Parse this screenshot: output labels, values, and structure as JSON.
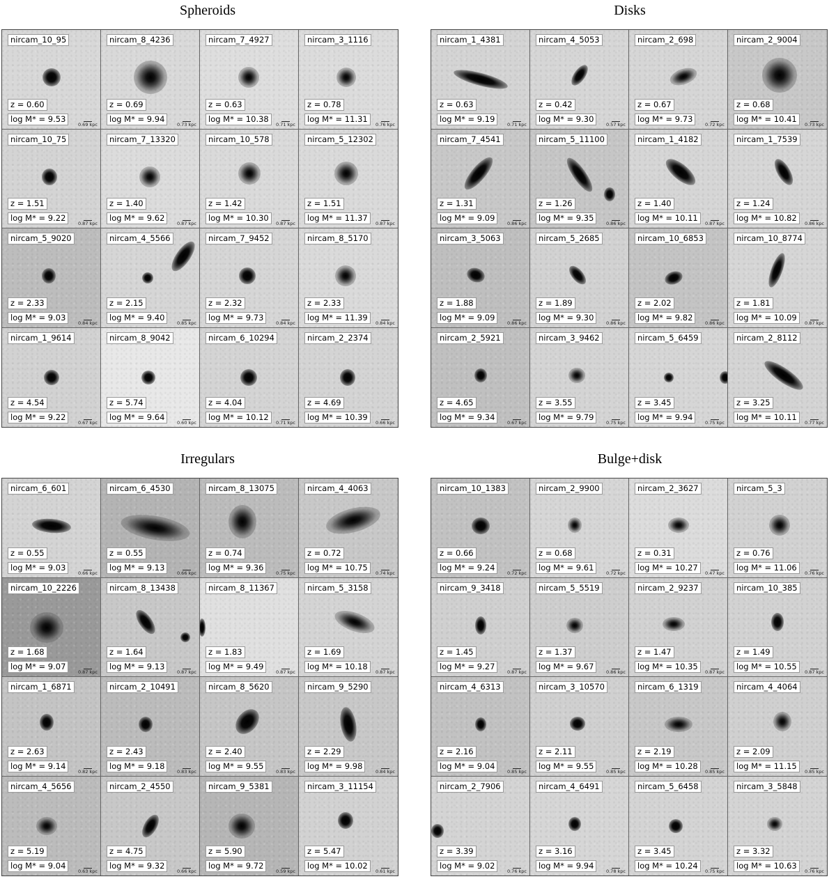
{
  "panels": [
    {
      "title": "Spheroids",
      "cells": [
        {
          "name": "nircam_10_95",
          "z": "z = 0.60",
          "m": "log M* = 9.53",
          "scale": "0.69 kpc"
        },
        {
          "name": "nircam_8_4236",
          "z": "z = 0.69",
          "m": "log M* = 9.94",
          "scale": "0.73 kpc"
        },
        {
          "name": "nircam_7_4927",
          "z": "z = 0.63",
          "m": "log M* = 10.38",
          "scale": "0.71 kpc"
        },
        {
          "name": "nircam_3_1116",
          "z": "z = 0.78",
          "m": "log M* = 11.31",
          "scale": "0.76 kpc"
        },
        {
          "name": "nircam_10_75",
          "z": "z = 1.51",
          "m": "log M* = 9.22",
          "scale": "0.87 kpc"
        },
        {
          "name": "nircam_7_13320",
          "z": "z = 1.40",
          "m": "log M* = 9.62",
          "scale": "0.87 kpc"
        },
        {
          "name": "nircam_10_578",
          "z": "z = 1.42",
          "m": "log M* = 10.30",
          "scale": "0.87 kpc"
        },
        {
          "name": "nircam_5_12302",
          "z": "z = 1.51",
          "m": "log M* = 11.37",
          "scale": "0.87 kpc"
        },
        {
          "name": "nircam_5_9020",
          "z": "z = 2.33",
          "m": "log M* = 9.03",
          "scale": "0.84 kpc"
        },
        {
          "name": "nircam_4_5566",
          "z": "z = 2.15",
          "m": "log M* = 9.40",
          "scale": "0.85 kpc"
        },
        {
          "name": "nircam_7_9452",
          "z": "z = 2.32",
          "m": "log M* = 9.73",
          "scale": "0.84 kpc"
        },
        {
          "name": "nircam_8_5170",
          "z": "z = 2.33",
          "m": "log M* = 11.39",
          "scale": "0.84 kpc"
        },
        {
          "name": "nircam_1_9614",
          "z": "z = 4.54",
          "m": "log M* = 9.22",
          "scale": "0.67 kpc"
        },
        {
          "name": "nircam_8_9042",
          "z": "z = 5.74",
          "m": "log M* = 9.64",
          "scale": "0.60 kpc"
        },
        {
          "name": "nircam_6_10294",
          "z": "z = 4.04",
          "m": "log M* = 10.12",
          "scale": "0.71 kpc"
        },
        {
          "name": "nircam_2_2374",
          "z": "z = 4.69",
          "m": "log M* = 10.39",
          "scale": "0.66 kpc"
        }
      ]
    },
    {
      "title": "Disks",
      "cells": [
        {
          "name": "nircam_1_4381",
          "z": "z = 0.63",
          "m": "log M* = 9.19",
          "scale": "0.71 kpc"
        },
        {
          "name": "nircam_4_5053",
          "z": "z = 0.42",
          "m": "log M* = 9.30",
          "scale": "0.57 kpc"
        },
        {
          "name": "nircam_2_698",
          "z": "z = 0.67",
          "m": "log M* = 9.73",
          "scale": "0.72 kpc"
        },
        {
          "name": "nircam_2_9004",
          "z": "z = 0.68",
          "m": "log M* = 10.41",
          "scale": "0.73 kpc"
        },
        {
          "name": "nircam_7_4541",
          "z": "z = 1.31",
          "m": "log M* = 9.09",
          "scale": "0.86 kpc"
        },
        {
          "name": "nircam_5_11100",
          "z": "z = 1.26",
          "m": "log M* = 9.35",
          "scale": "0.86 kpc"
        },
        {
          "name": "nircam_1_4182",
          "z": "z = 1.40",
          "m": "log M* = 10.11",
          "scale": "0.87 kpc"
        },
        {
          "name": "nircam_1_7539",
          "z": "z = 1.24",
          "m": "log M* = 10.82",
          "scale": "0.86 kpc"
        },
        {
          "name": "nircam_3_5063",
          "z": "z = 1.88",
          "m": "log M* = 9.09",
          "scale": "0.86 kpc"
        },
        {
          "name": "nircam_5_2685",
          "z": "z = 1.89",
          "m": "log M* = 9.30",
          "scale": "0.86 kpc"
        },
        {
          "name": "nircam_10_6853",
          "z": "z = 2.02",
          "m": "log M* = 9.82",
          "scale": "0.86 kpc"
        },
        {
          "name": "nircam_10_8774",
          "z": "z = 1.81",
          "m": "log M* = 10.09",
          "scale": "0.87 kpc"
        },
        {
          "name": "nircam_2_5921",
          "z": "z = 4.65",
          "m": "log M* = 9.34",
          "scale": "0.67 kpc"
        },
        {
          "name": "nircam_3_9462",
          "z": "z = 3.55",
          "m": "log M* = 9.79",
          "scale": "0.75 kpc"
        },
        {
          "name": "nircam_5_6459",
          "z": "z = 3.45",
          "m": "log M* = 9.94",
          "scale": "0.75 kpc"
        },
        {
          "name": "nircam_2_8112",
          "z": "z = 3.25",
          "m": "log M* = 10.11",
          "scale": "0.77 kpc"
        }
      ]
    },
    {
      "title": "Irregulars",
      "cells": [
        {
          "name": "nircam_6_601",
          "z": "z = 0.55",
          "m": "log M* = 9.03",
          "scale": "0.66 kpc"
        },
        {
          "name": "nircam_6_4530",
          "z": "z = 0.55",
          "m": "log M* = 9.13",
          "scale": "0.66 kpc"
        },
        {
          "name": "nircam_8_13075",
          "z": "z = 0.74",
          "m": "log M* = 9.36",
          "scale": "0.75 kpc"
        },
        {
          "name": "nircam_4_4063",
          "z": "z = 0.72",
          "m": "log M* = 10.75",
          "scale": "0.74 kpc"
        },
        {
          "name": "nircam_10_2226",
          "z": "z = 1.68",
          "m": "log M* = 9.07",
          "scale": "0.87 kpc"
        },
        {
          "name": "nircam_8_13438",
          "z": "z = 1.64",
          "m": "log M* = 9.13",
          "scale": "0.87 kpc"
        },
        {
          "name": "nircam_8_11367",
          "z": "z = 1.83",
          "m": "log M* = 9.49",
          "scale": "0.87 kpc"
        },
        {
          "name": "nircam_5_3158",
          "z": "z = 1.69",
          "m": "log M* = 10.18",
          "scale": "0.87 kpc"
        },
        {
          "name": "nircam_1_6871",
          "z": "z = 2.63",
          "m": "log M* = 9.14",
          "scale": "0.82 kpc"
        },
        {
          "name": "nircam_2_10491",
          "z": "z = 2.43",
          "m": "log M* = 9.18",
          "scale": "0.83 kpc"
        },
        {
          "name": "nircam_8_5620",
          "z": "z = 2.40",
          "m": "log M* = 9.55",
          "scale": "0.83 kpc"
        },
        {
          "name": "nircam_9_5290",
          "z": "z = 2.29",
          "m": "log M* = 9.98",
          "scale": "0.84 kpc"
        },
        {
          "name": "nircam_4_5656",
          "z": "z = 5.19",
          "m": "log M* = 9.04",
          "scale": "0.63 kpc"
        },
        {
          "name": "nircam_2_4550",
          "z": "z = 4.75",
          "m": "log M* = 9.32",
          "scale": "0.66 kpc"
        },
        {
          "name": "nircam_9_5381",
          "z": "z = 5.90",
          "m": "log M* = 9.72",
          "scale": "0.59 kpc"
        },
        {
          "name": "nircam_3_11154",
          "z": "z = 5.47",
          "m": "log M* = 10.02",
          "scale": "0.61 kpc"
        }
      ]
    },
    {
      "title": "Bulge+disk",
      "cells": [
        {
          "name": "nircam_10_1383",
          "z": "z = 0.66",
          "m": "log M* = 9.24",
          "scale": "0.72 kpc"
        },
        {
          "name": "nircam_2_9900",
          "z": "z = 0.68",
          "m": "log M* = 9.61",
          "scale": "0.72 kpc"
        },
        {
          "name": "nircam_2_3627",
          "z": "z = 0.31",
          "m": "log M* = 10.27",
          "scale": "0.47 kpc"
        },
        {
          "name": "nircam_5_3",
          "z": "z = 0.76",
          "m": "log M* = 11.06",
          "scale": "0.76 kpc"
        },
        {
          "name": "nircam_9_3418",
          "z": "z = 1.45",
          "m": "log M* = 9.27",
          "scale": "0.87 kpc"
        },
        {
          "name": "nircam_5_5519",
          "z": "z = 1.37",
          "m": "log M* = 9.67",
          "scale": "0.86 kpc"
        },
        {
          "name": "nircam_2_9237",
          "z": "z = 1.47",
          "m": "log M* = 10.35",
          "scale": "0.87 kpc"
        },
        {
          "name": "nircam_10_385",
          "z": "z = 1.49",
          "m": "log M* = 10.55",
          "scale": "0.87 kpc"
        },
        {
          "name": "nircam_4_6313",
          "z": "z = 2.16",
          "m": "log M* = 9.04",
          "scale": "0.85 kpc"
        },
        {
          "name": "nircam_3_10570",
          "z": "z = 2.11",
          "m": "log M* = 9.55",
          "scale": "0.85 kpc"
        },
        {
          "name": "nircam_6_1319",
          "z": "z = 2.19",
          "m": "log M* = 10.28",
          "scale": "0.85 kpc"
        },
        {
          "name": "nircam_4_4064",
          "z": "z = 2.09",
          "m": "log M* = 11.15",
          "scale": "0.85 kpc"
        },
        {
          "name": "nircam_2_7906",
          "z": "z = 3.39",
          "m": "log M* = 9.02",
          "scale": "0.76 kpc"
        },
        {
          "name": "nircam_4_6491",
          "z": "z = 3.16",
          "m": "log M* = 9.94",
          "scale": "0.78 kpc"
        },
        {
          "name": "nircam_5_6458",
          "z": "z = 3.45",
          "m": "log M* = 10.24",
          "scale": "0.75 kpc"
        },
        {
          "name": "nircam_3_5848",
          "z": "z = 3.32",
          "m": "log M* = 10.63",
          "scale": "0.76 kpc"
        }
      ]
    }
  ]
}
